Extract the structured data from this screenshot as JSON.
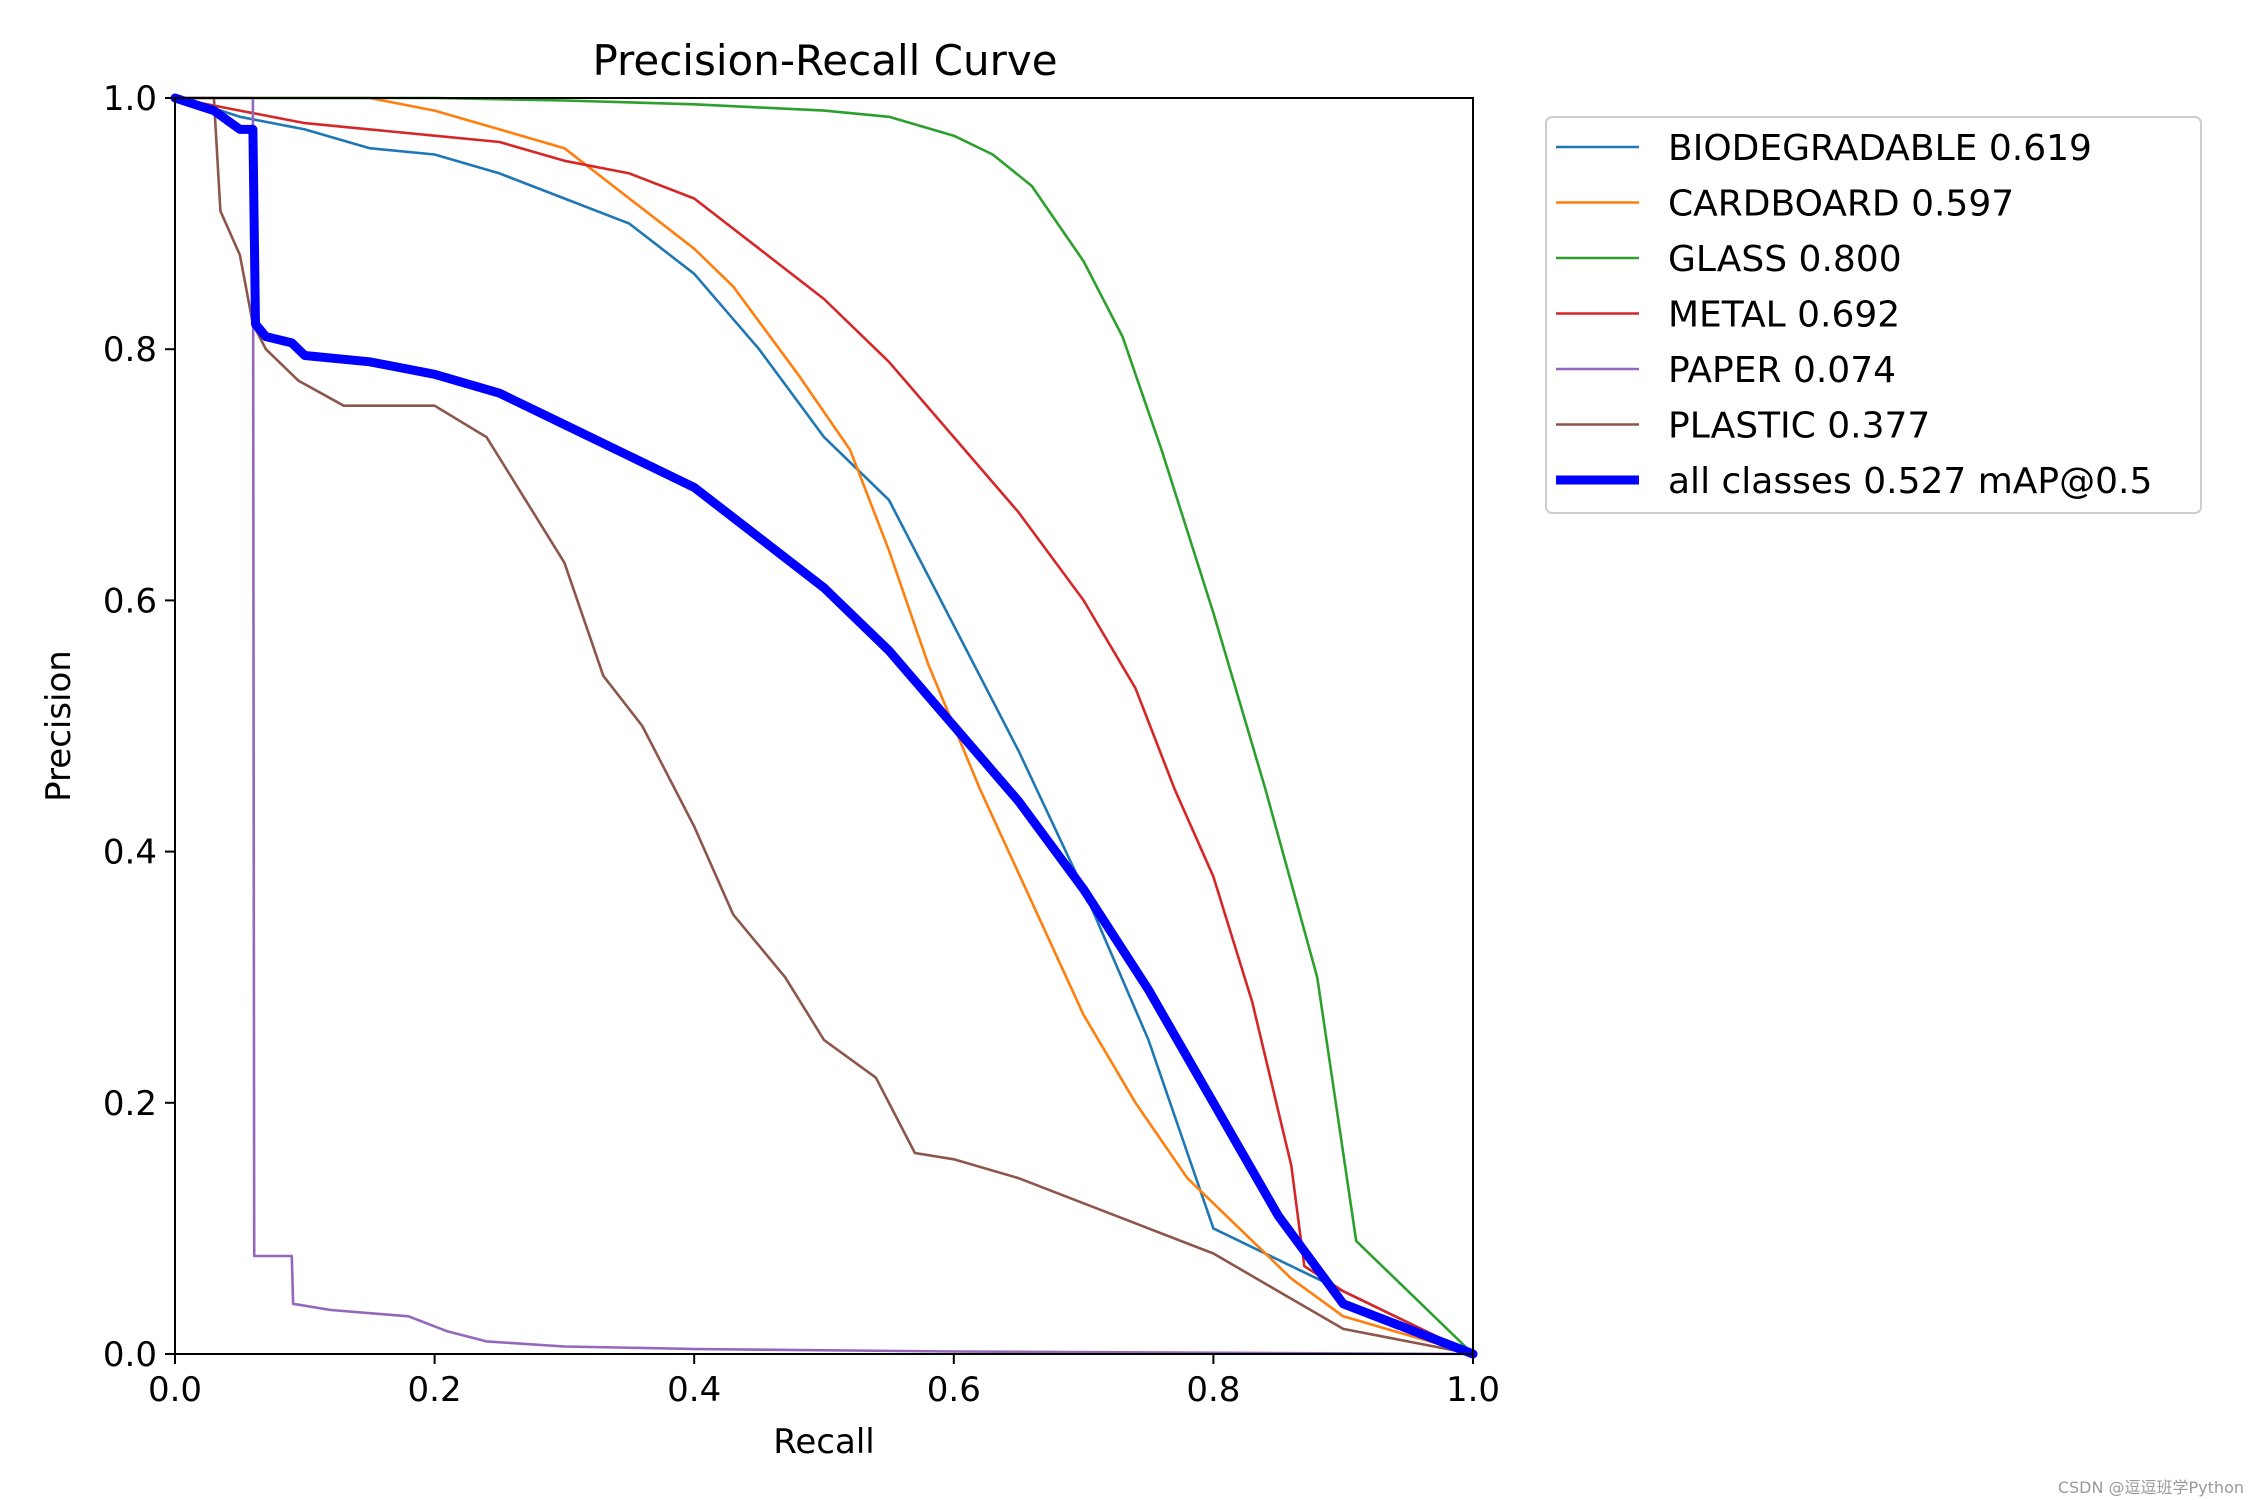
{
  "chart_data": {
    "type": "line",
    "title": "Precision-Recall Curve",
    "xlabel": "Recall",
    "ylabel": "Precision",
    "xlim": [
      0.0,
      1.0
    ],
    "ylim": [
      0.0,
      1.0
    ],
    "grid": false,
    "legend_position": "outside-right-top",
    "x_ticks": [
      "0.0",
      "0.2",
      "0.4",
      "0.6",
      "0.8",
      "1.0"
    ],
    "y_ticks": [
      "0.0",
      "0.2",
      "0.4",
      "0.6",
      "0.8",
      "1.0"
    ],
    "series": [
      {
        "name": "BIODEGRADABLE 0.619",
        "color": "#1f77b4",
        "x": [
          0.0,
          0.02,
          0.05,
          0.1,
          0.15,
          0.2,
          0.25,
          0.3,
          0.35,
          0.4,
          0.45,
          0.5,
          0.55,
          0.6,
          0.65,
          0.7,
          0.75,
          0.78,
          0.8,
          0.9,
          1.0
        ],
        "y": [
          1.0,
          0.995,
          0.985,
          0.975,
          0.96,
          0.955,
          0.94,
          0.92,
          0.9,
          0.86,
          0.8,
          0.73,
          0.68,
          0.58,
          0.48,
          0.37,
          0.25,
          0.16,
          0.1,
          0.05,
          0.0
        ]
      },
      {
        "name": "CARDBOARD 0.597",
        "color": "#ff7f0e",
        "x": [
          0.0,
          0.1,
          0.15,
          0.2,
          0.25,
          0.3,
          0.35,
          0.4,
          0.43,
          0.48,
          0.52,
          0.55,
          0.58,
          0.62,
          0.66,
          0.7,
          0.74,
          0.78,
          0.82,
          0.86,
          0.9,
          1.0
        ],
        "y": [
          1.0,
          1.0,
          1.0,
          0.99,
          0.975,
          0.96,
          0.92,
          0.88,
          0.85,
          0.78,
          0.72,
          0.64,
          0.55,
          0.45,
          0.36,
          0.27,
          0.2,
          0.14,
          0.1,
          0.06,
          0.03,
          0.0
        ]
      },
      {
        "name": "GLASS 0.800",
        "color": "#2ca02c",
        "x": [
          0.0,
          0.2,
          0.3,
          0.4,
          0.5,
          0.55,
          0.6,
          0.63,
          0.66,
          0.7,
          0.73,
          0.76,
          0.8,
          0.84,
          0.88,
          0.9,
          0.91,
          1.0
        ],
        "y": [
          1.0,
          1.0,
          0.998,
          0.995,
          0.99,
          0.985,
          0.97,
          0.955,
          0.93,
          0.87,
          0.81,
          0.72,
          0.59,
          0.45,
          0.3,
          0.16,
          0.09,
          0.0
        ]
      },
      {
        "name": "METAL 0.692",
        "color": "#d62728",
        "x": [
          0.0,
          0.05,
          0.1,
          0.15,
          0.2,
          0.25,
          0.3,
          0.35,
          0.4,
          0.45,
          0.5,
          0.55,
          0.6,
          0.65,
          0.7,
          0.74,
          0.77,
          0.8,
          0.83,
          0.86,
          0.87,
          0.9,
          1.0
        ],
        "y": [
          1.0,
          0.99,
          0.98,
          0.975,
          0.97,
          0.965,
          0.95,
          0.94,
          0.92,
          0.88,
          0.84,
          0.79,
          0.73,
          0.67,
          0.6,
          0.53,
          0.45,
          0.38,
          0.28,
          0.15,
          0.07,
          0.05,
          0.0
        ]
      },
      {
        "name": "PAPER 0.074",
        "color": "#9467bd",
        "x": [
          0.0,
          0.06,
          0.061,
          0.09,
          0.091,
          0.12,
          0.18,
          0.21,
          0.24,
          0.3,
          0.4,
          0.6,
          1.0
        ],
        "y": [
          1.0,
          1.0,
          0.078,
          0.078,
          0.04,
          0.035,
          0.03,
          0.018,
          0.01,
          0.006,
          0.004,
          0.002,
          0.0
        ]
      },
      {
        "name": "PLASTIC 0.377",
        "color": "#8c564b",
        "x": [
          0.0,
          0.03,
          0.035,
          0.05,
          0.06,
          0.07,
          0.095,
          0.13,
          0.2,
          0.24,
          0.27,
          0.3,
          0.33,
          0.36,
          0.4,
          0.43,
          0.47,
          0.5,
          0.54,
          0.57,
          0.6,
          0.65,
          0.7,
          0.75,
          0.8,
          0.85,
          0.9,
          1.0
        ],
        "y": [
          1.0,
          1.0,
          0.91,
          0.875,
          0.82,
          0.8,
          0.775,
          0.755,
          0.755,
          0.73,
          0.68,
          0.63,
          0.54,
          0.5,
          0.42,
          0.35,
          0.3,
          0.25,
          0.22,
          0.16,
          0.155,
          0.14,
          0.12,
          0.1,
          0.08,
          0.05,
          0.02,
          0.0
        ]
      },
      {
        "name": "all classes 0.527 mAP@0.5",
        "color": "#0000ff",
        "thick": true,
        "x": [
          0.0,
          0.03,
          0.05,
          0.06,
          0.062,
          0.07,
          0.09,
          0.1,
          0.15,
          0.2,
          0.25,
          0.3,
          0.35,
          0.4,
          0.45,
          0.5,
          0.55,
          0.6,
          0.65,
          0.7,
          0.75,
          0.8,
          0.85,
          0.9,
          1.0
        ],
        "y": [
          1.0,
          0.99,
          0.975,
          0.975,
          0.82,
          0.81,
          0.805,
          0.795,
          0.79,
          0.78,
          0.765,
          0.74,
          0.715,
          0.69,
          0.65,
          0.61,
          0.56,
          0.5,
          0.44,
          0.37,
          0.29,
          0.2,
          0.11,
          0.04,
          0.0
        ]
      }
    ]
  },
  "watermark": "CSDN @逗逗班学Python"
}
